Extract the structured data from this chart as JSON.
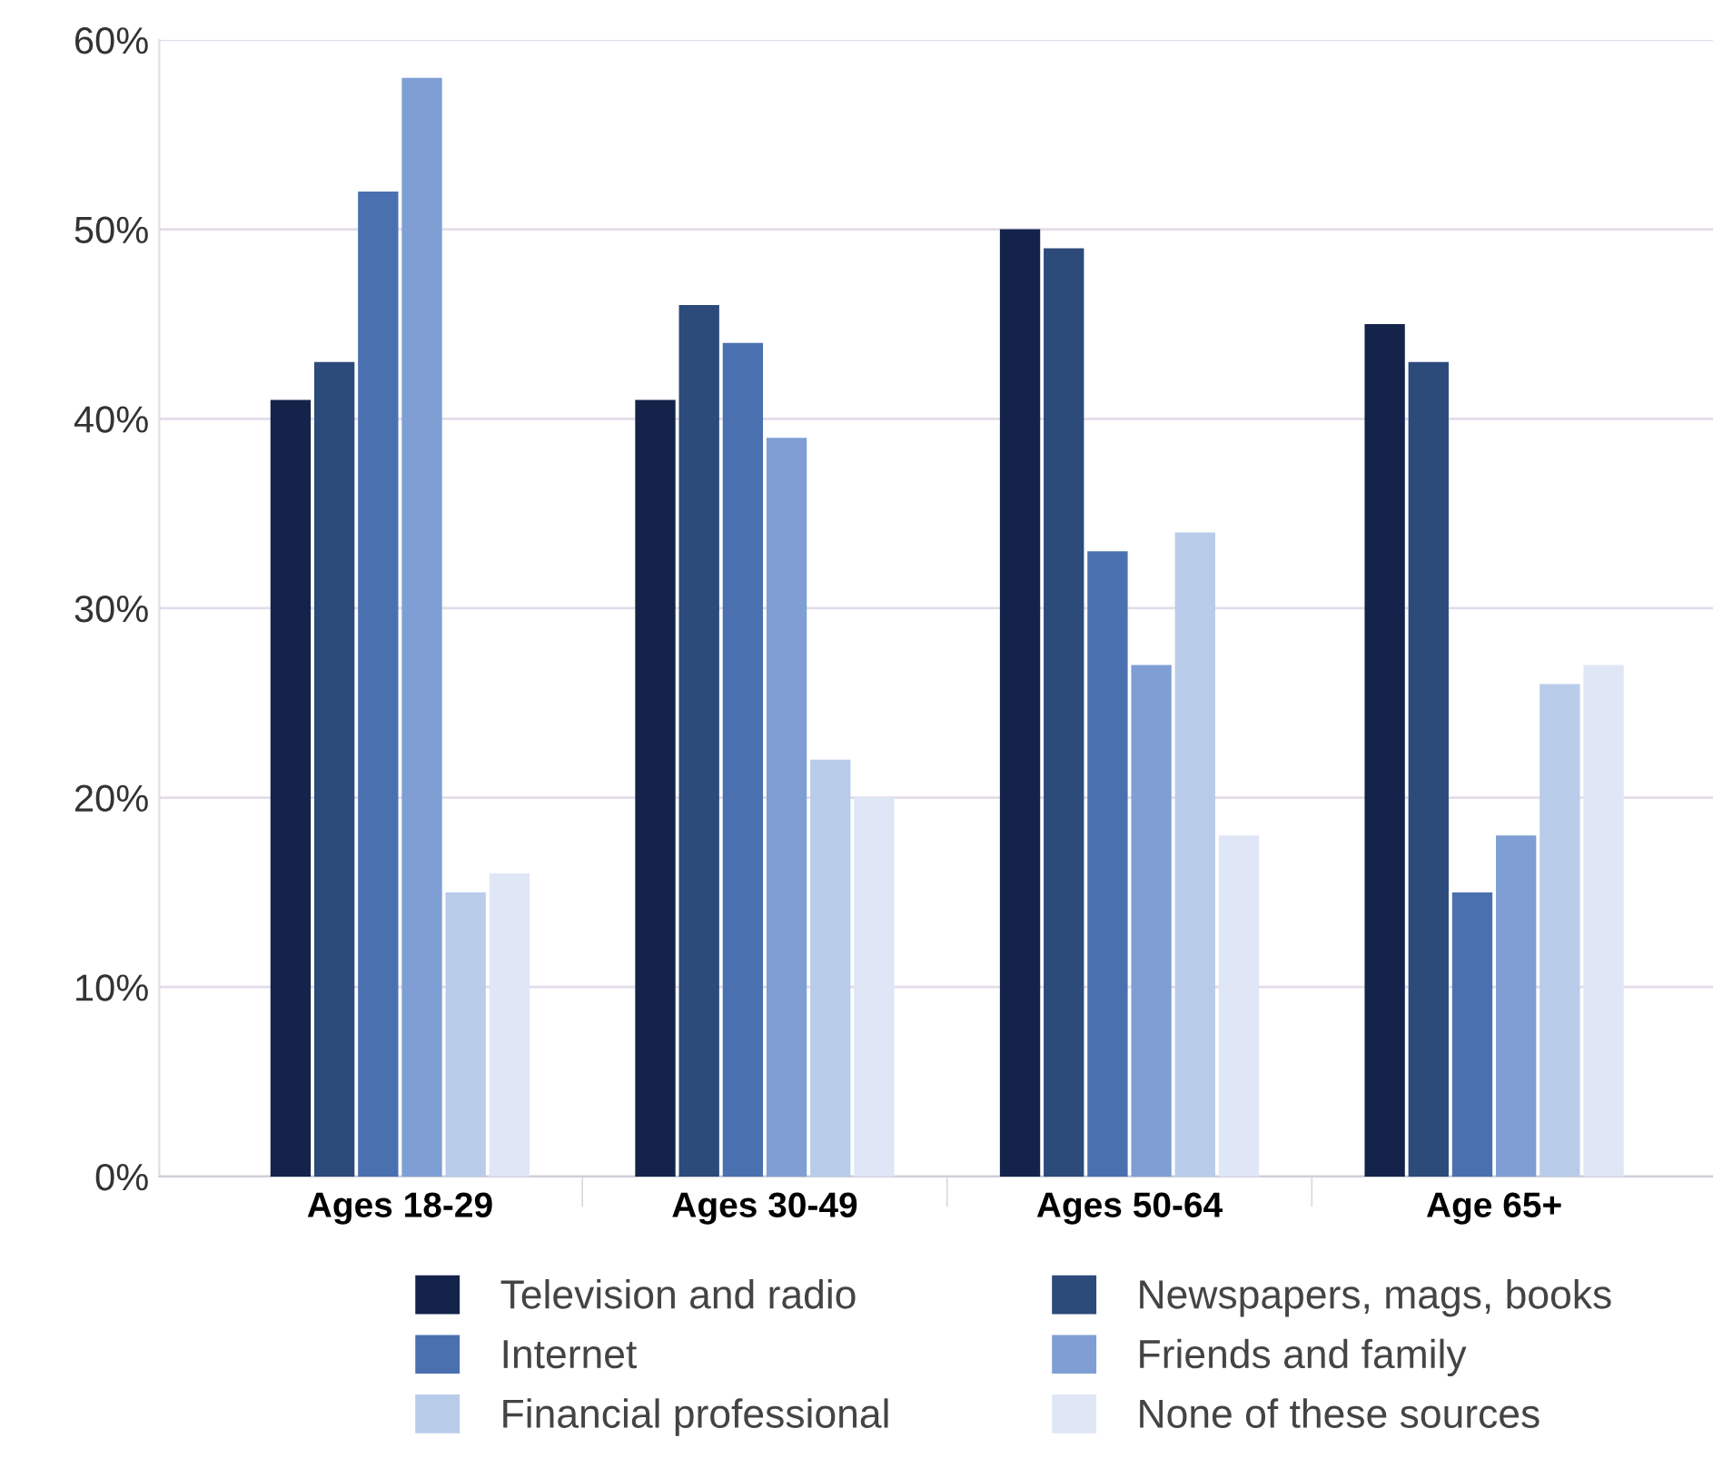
{
  "chart_data": {
    "type": "bar",
    "categories": [
      "Ages 18-29",
      "Ages 30-49",
      "Ages 50-64",
      "Age 65+"
    ],
    "series": [
      {
        "name": "Television and radio",
        "color": "#13234a",
        "values": [
          41,
          41,
          50,
          45
        ]
      },
      {
        "name": "Newspapers, mags, books",
        "color": "#2c4a7a",
        "values": [
          43,
          46,
          49,
          43
        ]
      },
      {
        "name": "Internet",
        "color": "#4a70b0",
        "values": [
          52,
          44,
          33,
          15
        ]
      },
      {
        "name": "Friends and family",
        "color": "#7f9fd4",
        "values": [
          58,
          39,
          27,
          18
        ]
      },
      {
        "name": "Financial professional",
        "color": "#b8ccea",
        "values": [
          15,
          22,
          34,
          26
        ]
      },
      {
        "name": "None of these sources",
        "color": "#dfe6f6",
        "values": [
          16,
          20,
          18,
          27
        ]
      }
    ],
    "ylim": [
      0,
      60
    ],
    "yticks": [
      {
        "value": 0,
        "label": "0%"
      },
      {
        "value": 10,
        "label": "10%"
      },
      {
        "value": 20,
        "label": "20%"
      },
      {
        "value": 30,
        "label": "30%"
      },
      {
        "value": 40,
        "label": "40%"
      },
      {
        "value": 50,
        "label": "50%"
      },
      {
        "value": 60,
        "label": "60%"
      }
    ],
    "grid": "y",
    "legend": "bottom"
  }
}
